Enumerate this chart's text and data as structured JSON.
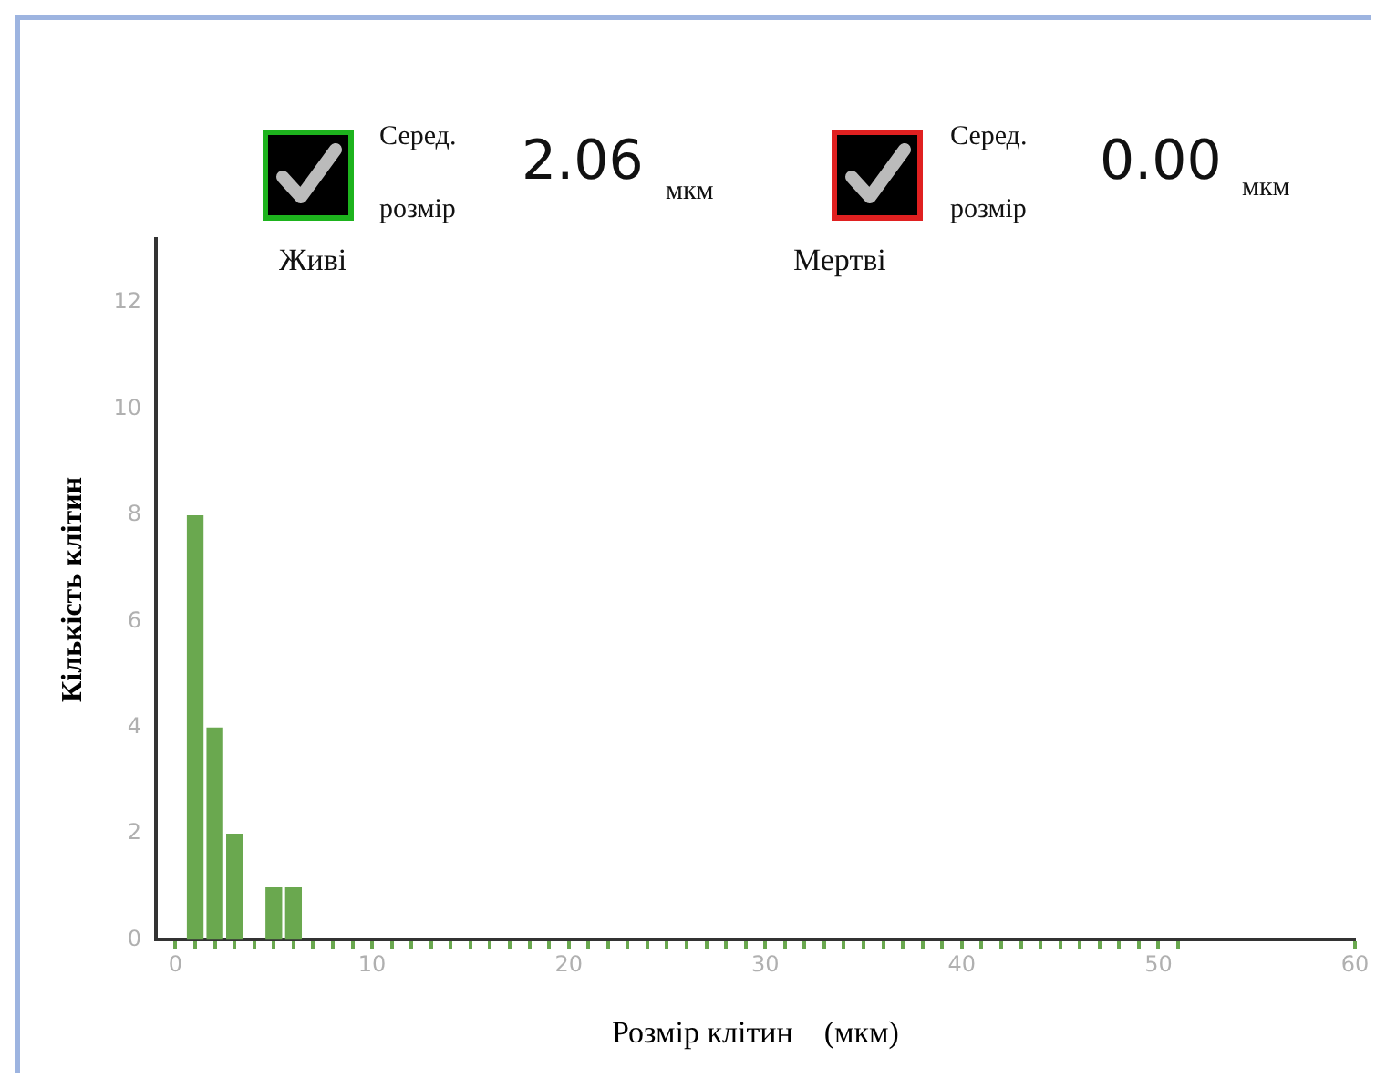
{
  "chart_data": {
    "type": "bar",
    "xlabel": "Розмір клітин    (мкм)",
    "ylabel": "Кількість клітин",
    "annotations": [
      "Живі",
      "Серед. розмір",
      "2.06",
      "мкм",
      "Мертві",
      "Серед. розмір",
      "0.00",
      "мкм"
    ],
    "x": [
      0,
      1,
      2,
      3,
      4,
      5,
      6,
      7,
      8,
      9,
      10,
      11,
      12,
      13,
      14,
      15,
      16,
      17,
      18,
      19,
      20,
      21,
      22,
      23,
      24,
      25,
      26,
      27,
      28,
      29,
      30,
      31,
      32,
      33,
      34,
      35,
      36,
      37,
      38,
      39,
      40,
      41,
      42,
      43,
      44,
      45,
      46,
      47,
      48,
      49,
      50,
      51
    ],
    "values": [
      0,
      8,
      4,
      2,
      0,
      1,
      1,
      0,
      0,
      0,
      0,
      0,
      0,
      0,
      0,
      0,
      0,
      0,
      0,
      0,
      0,
      0,
      0,
      0,
      0,
      0,
      0,
      0,
      0,
      0,
      0,
      0,
      0,
      0,
      0,
      0,
      0,
      0,
      0,
      0,
      0,
      0,
      0,
      0,
      0,
      0,
      0,
      0,
      0,
      0,
      0,
      0
    ],
    "color": "#6aa84f",
    "xlim": [
      -1,
      60
    ],
    "xticks": [
      0,
      {
        "value": 1,
        "label": null
      },
      {
        "value": 2,
        "label": null
      },
      {
        "value": 3,
        "label": null
      },
      {
        "value": 4,
        "label": null
      },
      {
        "value": 5,
        "label": null
      },
      {
        "value": 6,
        "label": null
      },
      {
        "value": 7,
        "label": null
      },
      {
        "value": 8,
        "label": null
      },
      {
        "value": 9,
        "label": null
      },
      10,
      {
        "value": 11,
        "label": null
      },
      {
        "value": 12,
        "label": null
      },
      {
        "value": 13,
        "label": null
      },
      {
        "value": 14,
        "label": null
      },
      {
        "value": 15,
        "label": null
      },
      {
        "value": 16,
        "label": null
      },
      {
        "value": 17,
        "label": null
      },
      {
        "value": 18,
        "label": null
      },
      {
        "value": 19,
        "label": null
      },
      20,
      {
        "value": 21,
        "label": null
      },
      {
        "value": 22,
        "label": null
      },
      {
        "value": 23,
        "label": null
      },
      {
        "value": 24,
        "label": null
      },
      {
        "value": 25,
        "label": null
      },
      {
        "value": 26,
        "label": null
      },
      {
        "value": 27,
        "label": null
      },
      {
        "value": 28,
        "label": null
      },
      {
        "value": 29,
        "label": null
      },
      30,
      {
        "value": 31,
        "label": null
      },
      {
        "value": 32,
        "label": null
      },
      {
        "value": 33,
        "label": null
      },
      {
        "value": 34,
        "label": null
      },
      {
        "value": 35,
        "label": null
      },
      {
        "value": 36,
        "label": null
      },
      {
        "value": 37,
        "label": null
      },
      {
        "value": 38,
        "label": null
      },
      {
        "value": 39,
        "label": null
      },
      40,
      {
        "value": 41,
        "label": null
      },
      {
        "value": 42,
        "label": null
      },
      {
        "value": 43,
        "label": null
      },
      {
        "value": 44,
        "label": null
      },
      {
        "value": 45,
        "label": null
      },
      {
        "value": 46,
        "label": null
      },
      {
        "value": 47,
        "label": null
      },
      {
        "value": 48,
        "label": null
      },
      {
        "value": 49,
        "label": null
      },
      50,
      {
        "value": 51,
        "label": null
      },
      60
    ],
    "ylim": [
      0,
      13.2
    ],
    "yticks": [
      0,
      2,
      4,
      6,
      8,
      10,
      12
    ],
    "grid": false,
    "legend": false
  }
}
